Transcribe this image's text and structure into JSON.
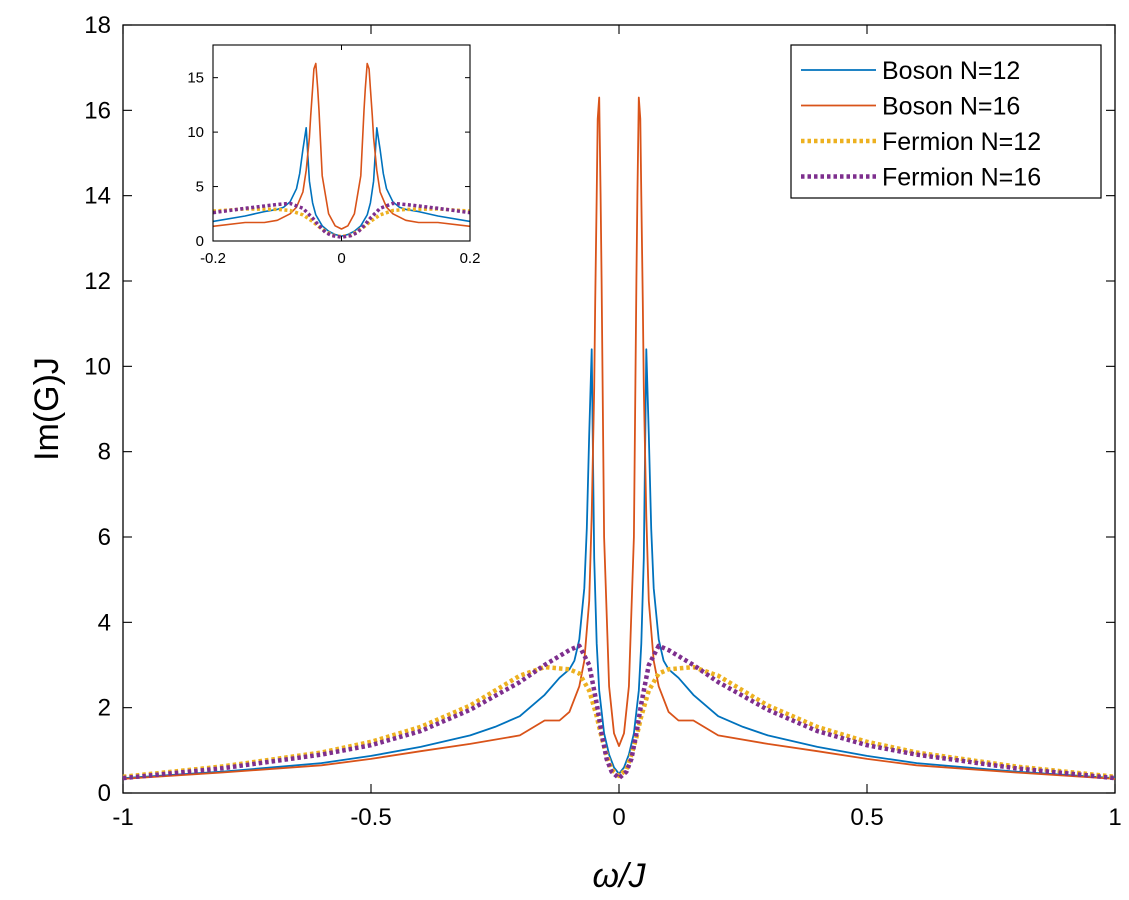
{
  "chart_data": [
    {
      "type": "line",
      "xlabel": "ω/J",
      "ylabel": "Im(G)J",
      "xlim": [
        -1,
        1
      ],
      "ylim": [
        0,
        18
      ],
      "xticks": [
        -1,
        -0.5,
        0,
        0.5,
        1
      ],
      "xtick_labels": [
        "-1",
        "-0.5",
        "0",
        "0.5",
        "1"
      ],
      "yticks": [
        0,
        2,
        4,
        6,
        8,
        10,
        12,
        14,
        16,
        18
      ],
      "ytick_labels": [
        "0",
        "2",
        "4",
        "6",
        "8",
        "10",
        "12",
        "14",
        "16",
        "18"
      ],
      "grid": false,
      "legend_position": "top-right",
      "series": [
        {
          "name": "Boson N=12",
          "color": "#0072BD",
          "style": "solid",
          "x": [
            -1,
            -0.8,
            -0.6,
            -0.5,
            -0.4,
            -0.3,
            -0.25,
            -0.2,
            -0.15,
            -0.12,
            -0.1,
            -0.09,
            -0.08,
            -0.07,
            -0.065,
            -0.06,
            -0.055,
            -0.05,
            -0.045,
            -0.04,
            -0.03,
            -0.02,
            -0.01,
            0,
            0.01,
            0.02,
            0.03,
            0.04,
            0.045,
            0.05,
            0.055,
            0.06,
            0.065,
            0.07,
            0.08,
            0.09,
            0.1,
            0.12,
            0.15,
            0.2,
            0.25,
            0.3,
            0.4,
            0.5,
            0.6,
            0.8,
            1
          ],
          "y": [
            0.35,
            0.5,
            0.7,
            0.87,
            1.08,
            1.35,
            1.55,
            1.8,
            2.3,
            2.7,
            2.9,
            3.1,
            3.6,
            4.8,
            6.2,
            8.4,
            10.4,
            5.5,
            3.5,
            2.4,
            1.4,
            0.9,
            0.6,
            0.45,
            0.6,
            0.9,
            1.4,
            2.4,
            3.5,
            5.5,
            10.4,
            8.4,
            6.2,
            4.8,
            3.6,
            3.1,
            2.9,
            2.7,
            2.3,
            1.8,
            1.55,
            1.35,
            1.08,
            0.87,
            0.7,
            0.5,
            0.35
          ]
        },
        {
          "name": "Boson N=16",
          "color": "#D95319",
          "style": "solid",
          "x": [
            -1,
            -0.8,
            -0.6,
            -0.5,
            -0.4,
            -0.3,
            -0.2,
            -0.15,
            -0.12,
            -0.1,
            -0.08,
            -0.07,
            -0.06,
            -0.055,
            -0.05,
            -0.048,
            -0.045,
            -0.043,
            -0.04,
            -0.037,
            -0.035,
            -0.03,
            -0.02,
            -0.01,
            0,
            0.01,
            0.02,
            0.03,
            0.035,
            0.037,
            0.04,
            0.043,
            0.045,
            0.048,
            0.05,
            0.055,
            0.06,
            0.07,
            0.08,
            0.1,
            0.12,
            0.15,
            0.2,
            0.3,
            0.4,
            0.5,
            0.6,
            0.8,
            1
          ],
          "y": [
            0.33,
            0.48,
            0.65,
            0.8,
            0.98,
            1.15,
            1.35,
            1.7,
            1.7,
            1.9,
            2.5,
            3.1,
            4.5,
            6.5,
            9.5,
            11.5,
            14.0,
            15.8,
            16.3,
            14.0,
            12.0,
            6.0,
            2.5,
            1.4,
            1.1,
            1.4,
            2.5,
            6.0,
            12.0,
            14.0,
            16.3,
            15.8,
            14.0,
            11.5,
            9.5,
            6.5,
            4.5,
            3.1,
            2.5,
            1.9,
            1.7,
            1.7,
            1.35,
            1.15,
            0.98,
            0.8,
            0.65,
            0.48,
            0.33
          ]
        },
        {
          "name": "Fermion N=12",
          "color": "#EDB120",
          "style": "dotted",
          "x": [
            -1,
            -0.8,
            -0.6,
            -0.5,
            -0.4,
            -0.3,
            -0.2,
            -0.15,
            -0.1,
            -0.08,
            -0.06,
            -0.045,
            -0.035,
            -0.025,
            -0.015,
            0,
            0.015,
            0.025,
            0.035,
            0.045,
            0.06,
            0.08,
            0.1,
            0.15,
            0.2,
            0.3,
            0.4,
            0.5,
            0.6,
            0.8,
            1
          ],
          "y": [
            0.38,
            0.62,
            0.95,
            1.2,
            1.55,
            2.05,
            2.75,
            2.95,
            2.9,
            2.8,
            2.4,
            1.8,
            1.3,
            0.9,
            0.55,
            0.4,
            0.55,
            0.9,
            1.3,
            1.8,
            2.4,
            2.8,
            2.9,
            2.95,
            2.75,
            2.05,
            1.55,
            1.2,
            0.95,
            0.62,
            0.38
          ]
        },
        {
          "name": "Fermion N=16",
          "color": "#7E2F8E",
          "style": "dotted",
          "x": [
            -1,
            -0.8,
            -0.6,
            -0.5,
            -0.4,
            -0.3,
            -0.2,
            -0.15,
            -0.1,
            -0.08,
            -0.06,
            -0.045,
            -0.035,
            -0.025,
            -0.015,
            0,
            0.015,
            0.025,
            0.035,
            0.045,
            0.06,
            0.08,
            0.1,
            0.15,
            0.2,
            0.3,
            0.4,
            0.5,
            0.6,
            0.8,
            1
          ],
          "y": [
            0.35,
            0.58,
            0.9,
            1.12,
            1.45,
            1.95,
            2.6,
            3.0,
            3.35,
            3.45,
            3.0,
            2.1,
            1.4,
            0.8,
            0.5,
            0.35,
            0.5,
            0.8,
            1.4,
            2.1,
            3.0,
            3.45,
            3.35,
            3.0,
            2.6,
            1.95,
            1.45,
            1.12,
            0.9,
            0.58,
            0.35
          ]
        }
      ]
    },
    {
      "type": "line",
      "inset": true,
      "xlim": [
        -0.2,
        0.2
      ],
      "ylim": [
        0,
        18
      ],
      "xticks": [
        -0.2,
        0,
        0.2
      ],
      "xtick_labels": [
        "-0.2",
        "0",
        "0.2"
      ],
      "yticks": [
        0,
        5,
        10,
        15
      ],
      "ytick_labels": [
        "0",
        "5",
        "10",
        "15"
      ],
      "grid": false,
      "series_ref": [
        "Boson N=12",
        "Boson N=16",
        "Fermion N=12",
        "Fermion N=16"
      ]
    }
  ]
}
